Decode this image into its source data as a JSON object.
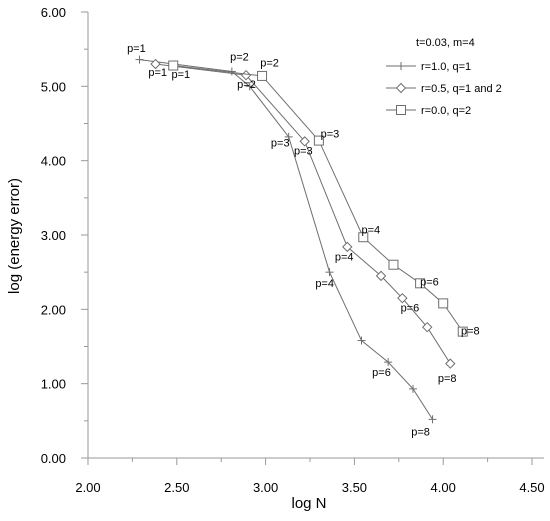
{
  "chart_data": {
    "type": "line",
    "title": "",
    "xlabel": "log N",
    "ylabel": "log (energy error)",
    "xlim": [
      2.0,
      4.5
    ],
    "ylim": [
      0.0,
      6.0
    ],
    "x_ticks": [
      2.0,
      2.5,
      3.0,
      3.5,
      4.0,
      4.5
    ],
    "y_ticks": [
      0.0,
      1.0,
      2.0,
      3.0,
      4.0,
      5.0,
      6.0
    ],
    "x_tick_labels": [
      "2.00",
      "2.50",
      "3.00",
      "3.50",
      "4.00",
      "4.50"
    ],
    "y_tick_labels": [
      "0.00",
      "1.00",
      "2.00",
      "3.00",
      "4.00",
      "5.00",
      "6.00"
    ],
    "grid": false,
    "legend": {
      "title": "t=0.03, m=4",
      "position": "top-right"
    },
    "series": [
      {
        "name": "r=1.0, q=1",
        "marker": "plus",
        "color": "#6e6e6e",
        "x": [
          2.29,
          2.81,
          2.91,
          3.13,
          3.36,
          3.54,
          3.69,
          3.83,
          3.94
        ],
        "y": [
          5.36,
          5.2,
          5.0,
          4.32,
          2.5,
          1.58,
          1.29,
          0.93,
          0.52
        ]
      },
      {
        "name": "r=0.5, q=1 and 2",
        "marker": "diamond",
        "color": "#6e6e6e",
        "x": [
          2.38,
          2.89,
          3.22,
          3.46,
          3.65,
          3.77,
          3.91,
          4.04
        ],
        "y": [
          5.3,
          5.15,
          4.26,
          2.84,
          2.45,
          2.15,
          1.76,
          1.27
        ]
      },
      {
        "name": "r=0.0, q=2",
        "marker": "square",
        "color": "#6e6e6e",
        "x": [
          2.48,
          2.98,
          3.3,
          3.55,
          3.72,
          3.87,
          4.0,
          4.11
        ],
        "y": [
          5.28,
          5.14,
          4.27,
          2.97,
          2.6,
          2.35,
          2.08,
          1.7
        ]
      }
    ],
    "annotations": [
      {
        "text": "p=1",
        "x": 2.22,
        "y": 5.46
      },
      {
        "text": "p=1",
        "x": 2.34,
        "y": 5.14
      },
      {
        "text": "p=1",
        "x": 2.47,
        "y": 5.11
      },
      {
        "text": "p=2",
        "x": 2.8,
        "y": 5.35
      },
      {
        "text": "p=2",
        "x": 2.97,
        "y": 5.27
      },
      {
        "text": "p=2",
        "x": 2.84,
        "y": 4.98
      },
      {
        "text": "p=3",
        "x": 3.03,
        "y": 4.19
      },
      {
        "text": "p=3",
        "x": 3.16,
        "y": 4.08
      },
      {
        "text": "p=3",
        "x": 3.31,
        "y": 4.31
      },
      {
        "text": "p=4",
        "x": 3.54,
        "y": 3.02
      },
      {
        "text": "p=4",
        "x": 3.39,
        "y": 2.66
      },
      {
        "text": "p=4",
        "x": 3.28,
        "y": 2.3
      },
      {
        "text": "p=6",
        "x": 3.87,
        "y": 2.32
      },
      {
        "text": "p=6",
        "x": 3.76,
        "y": 1.97
      },
      {
        "text": "p=6",
        "x": 3.6,
        "y": 1.1
      },
      {
        "text": "p=8",
        "x": 4.1,
        "y": 1.66
      },
      {
        "text": "p=8",
        "x": 3.97,
        "y": 1.02
      },
      {
        "text": "p=8",
        "x": 3.82,
        "y": 0.3
      }
    ]
  }
}
